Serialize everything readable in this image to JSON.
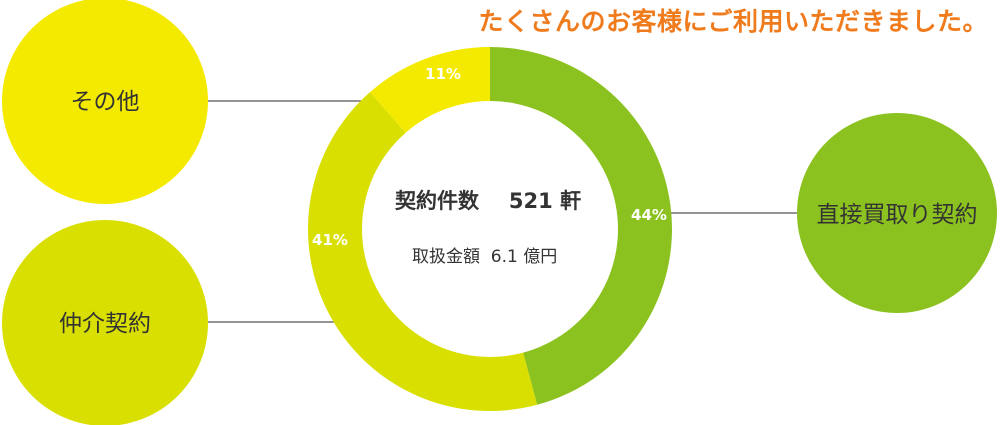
{
  "headline": "たくさんのお客様にご利用いただきました。",
  "center": {
    "count_label": "契約件数",
    "count_value": "521 軒",
    "amount_label": "取扱金額",
    "amount_value": "6.1 億円"
  },
  "colors": {
    "headline": "#f07b1d",
    "direct": "#8cc21f",
    "broker": "#d9df00",
    "other": "#f4ea00",
    "leader": "#555555"
  },
  "chart_data": {
    "type": "pie",
    "subtype": "donut",
    "start": "12 o'clock, clockwise",
    "categories": [
      "直接買取り契約",
      "仲介契約",
      "その他"
    ],
    "values": [
      44,
      41,
      11
    ],
    "value_labels": [
      "44%",
      "41%",
      "11%"
    ],
    "unit": "%"
  }
}
